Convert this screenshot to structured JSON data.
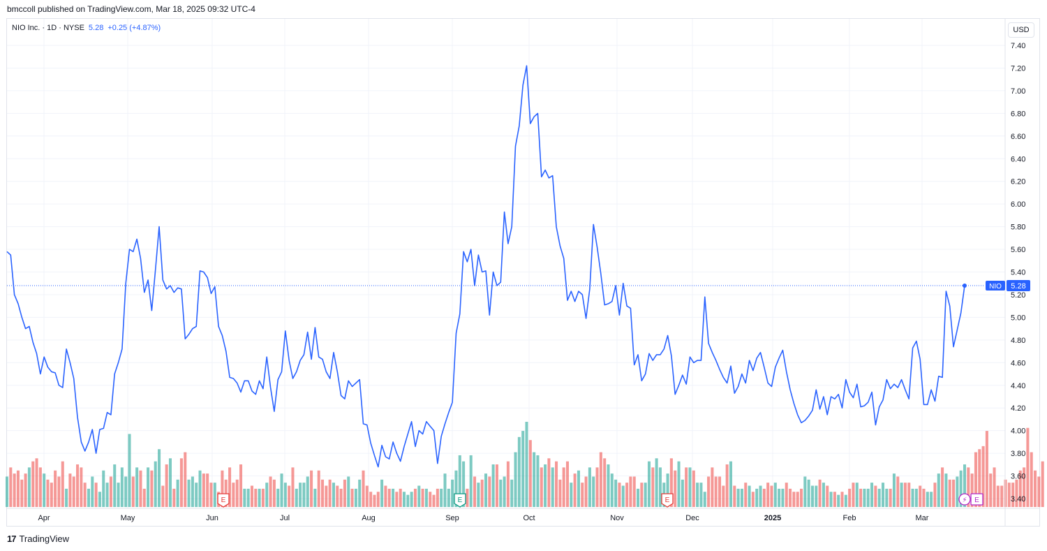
{
  "header": {
    "credit": "bmccoll published on TradingView.com, Mar 18, 2025 09:32 UTC-4"
  },
  "legend": {
    "symbol": "NIO Inc. · 1D · NYSE",
    "price": "5.28",
    "change": "+0.25 (+4.87%)"
  },
  "currency": "USD",
  "footer": {
    "brand": "TradingView"
  },
  "colors": {
    "line": "#2962ff",
    "vol_up": "#26a69a",
    "vol_down": "#ef5350",
    "grid": "#f0f3fa",
    "earn_red": "#e53935",
    "earn_green": "#089981",
    "div": "#b026c6"
  },
  "chart_data": {
    "type": "line",
    "title": "",
    "ylabel": "",
    "ylim": [
      3.3,
      7.55
    ],
    "y_ticks": [
      "7.40",
      "7.20",
      "7.00",
      "6.80",
      "6.60",
      "6.40",
      "6.20",
      "6.00",
      "5.80",
      "5.60",
      "5.40",
      "5.20",
      "5.00",
      "4.80",
      "4.60",
      "4.40",
      "4.20",
      "4.00",
      "3.80",
      "3.60",
      "3.40"
    ],
    "x_labels": [
      "Apr",
      "May",
      "Jun",
      "Jul",
      "Aug",
      "Sep",
      "Oct",
      "Nov",
      "Dec",
      "2025",
      "Feb",
      "Mar"
    ],
    "price_label": {
      "symbol": "NIO",
      "value": "5.28",
      "y": 5.28
    },
    "series": [
      {
        "name": "NIO",
        "values": [
          5.58,
          5.55,
          5.2,
          5.12,
          5.0,
          4.9,
          4.92,
          4.78,
          4.68,
          4.5,
          4.65,
          4.56,
          4.52,
          4.51,
          4.4,
          4.38,
          4.72,
          4.6,
          4.46,
          4.12,
          3.9,
          3.82,
          3.9,
          4.01,
          3.8,
          4.01,
          4.02,
          4.16,
          4.14,
          4.5,
          4.6,
          4.72,
          5.3,
          5.6,
          5.58,
          5.69,
          5.52,
          5.22,
          5.33,
          5.06,
          5.42,
          5.8,
          5.33,
          5.25,
          5.28,
          5.22,
          5.26,
          5.25,
          4.81,
          4.85,
          4.9,
          4.92,
          5.41,
          5.4,
          5.35,
          5.21,
          5.27,
          4.92,
          4.84,
          4.7,
          4.47,
          4.46,
          4.42,
          4.34,
          4.44,
          4.44,
          4.35,
          4.32,
          4.44,
          4.37,
          4.65,
          4.38,
          4.17,
          4.45,
          4.52,
          4.88,
          4.62,
          4.46,
          4.52,
          4.62,
          4.67,
          4.87,
          4.63,
          4.91,
          4.65,
          4.63,
          4.52,
          4.46,
          4.69,
          4.52,
          4.31,
          4.28,
          4.44,
          4.39,
          4.42,
          4.45,
          4.06,
          4.05,
          3.89,
          3.78,
          3.68,
          3.87,
          3.77,
          3.75,
          3.9,
          3.8,
          3.73,
          3.86,
          3.97,
          4.08,
          3.86,
          4.0,
          3.97,
          4.08,
          4.04,
          4.0,
          3.71,
          3.95,
          4.06,
          4.16,
          4.25,
          4.86,
          5.03,
          5.58,
          5.49,
          5.6,
          5.28,
          5.55,
          5.4,
          5.41,
          5.02,
          5.4,
          5.28,
          5.31,
          5.93,
          5.65,
          5.8,
          6.51,
          6.69,
          7.05,
          7.22,
          6.71,
          6.77,
          6.8,
          6.24,
          6.3,
          6.23,
          6.25,
          5.8,
          5.63,
          5.52,
          5.15,
          5.23,
          5.14,
          5.23,
          5.2,
          4.99,
          5.25,
          5.82,
          5.62,
          5.38,
          5.11,
          5.12,
          5.14,
          5.28,
          5.02,
          5.3,
          5.1,
          5.08,
          4.58,
          4.67,
          4.44,
          4.5,
          4.68,
          4.62,
          4.67,
          4.67,
          4.72,
          4.84,
          4.66,
          4.32,
          4.4,
          4.49,
          4.41,
          4.65,
          4.6,
          4.62,
          4.62,
          5.18,
          4.77,
          4.69,
          4.62,
          4.54,
          4.47,
          4.42,
          4.57,
          4.33,
          4.39,
          4.5,
          4.42,
          4.62,
          4.53,
          4.64,
          4.69,
          4.56,
          4.42,
          4.39,
          4.56,
          4.64,
          4.71,
          4.52,
          4.36,
          4.24,
          4.14,
          4.07,
          4.09,
          4.13,
          4.18,
          4.36,
          4.19,
          4.3,
          4.14,
          4.3,
          4.28,
          4.32,
          4.2,
          4.45,
          4.34,
          4.29,
          4.41,
          4.21,
          4.22,
          4.25,
          4.34,
          4.05,
          4.21,
          4.27,
          4.45,
          4.37,
          4.41,
          4.38,
          4.45,
          4.36,
          4.28,
          4.73,
          4.79,
          4.63,
          4.23,
          4.23,
          4.36,
          4.26,
          4.48,
          4.47,
          5.23,
          5.1,
          4.74,
          4.89,
          5.04,
          5.28
        ]
      },
      {
        "name": "Volume",
        "values": [
          1.0,
          1.3,
          1.1,
          1.2,
          0.9,
          1.1,
          1.3,
          1.5,
          1.6,
          1.3,
          1.1,
          0.9,
          0.8,
          1.2,
          1.0,
          1.5,
          0.6,
          1.1,
          1.0,
          1.4,
          1.3,
          0.8,
          0.6,
          1.0,
          0.8,
          0.5,
          1.2,
          0.8,
          1.0,
          1.4,
          0.8,
          1.3,
          1.0,
          2.4,
          1.0,
          1.3,
          1.2,
          0.6,
          1.3,
          1.2,
          1.5,
          1.9,
          0.7,
          1.4,
          1.6,
          0.6,
          0.9,
          1.6,
          1.8,
          0.9,
          1.0,
          0.8,
          1.2,
          1.1,
          1.1,
          0.8,
          0.8,
          0.5,
          1.2,
          0.9,
          1.3,
          0.8,
          0.9,
          1.4,
          0.6,
          0.6,
          0.7,
          0.6,
          0.6,
          0.6,
          0.8,
          1.0,
          0.9,
          0.6,
          1.1,
          0.8,
          0.7,
          1.3,
          0.6,
          0.8,
          0.8,
          1.0,
          1.2,
          0.6,
          1.2,
          0.9,
          0.7,
          0.9,
          0.8,
          0.7,
          0.6,
          0.9,
          1.0,
          0.6,
          0.6,
          0.9,
          1.2,
          0.7,
          0.5,
          0.4,
          0.5,
          0.9,
          0.7,
          0.6,
          0.6,
          0.5,
          0.6,
          0.5,
          0.4,
          0.5,
          0.6,
          0.7,
          0.6,
          0.6,
          0.5,
          0.4,
          0.6,
          0.6,
          1.1,
          0.6,
          0.9,
          1.2,
          1.7,
          1.5,
          0.6,
          1.7,
          1.0,
          0.8,
          0.9,
          1.1,
          1.0,
          1.4,
          1.4,
          0.9,
          1.0,
          1.5,
          0.9,
          1.8,
          2.3,
          2.5,
          2.8,
          2.2,
          1.8,
          1.7,
          1.3,
          1.4,
          1.6,
          1.3,
          1.5,
          0.9,
          1.3,
          1.5,
          0.8,
          1.1,
          1.2,
          0.8,
          1.0,
          1.3,
          1.0,
          1.3,
          1.8,
          1.6,
          1.4,
          1.1,
          0.9,
          0.8,
          0.7,
          0.8,
          1.0,
          1.0,
          0.6,
          0.8,
          0.8,
          1.5,
          1.3,
          1.6,
          1.3,
          0.8,
          1.1,
          1.6,
          1.2,
          1.5,
          0.9,
          1.3,
          1.3,
          1.2,
          0.8,
          0.8,
          0.5,
          1.0,
          1.3,
          1.0,
          1.0,
          0.7,
          1.4,
          1.5,
          0.7,
          0.6,
          0.6,
          0.8,
          0.7,
          0.5,
          0.6,
          0.7,
          0.6,
          0.8,
          0.7,
          0.8,
          0.6,
          0.6,
          0.8,
          0.6,
          0.5,
          0.5,
          0.6,
          1.0,
          0.9,
          0.7,
          0.7,
          0.9,
          0.8,
          0.7,
          0.5,
          0.5,
          0.4,
          0.5,
          0.4,
          0.6,
          0.8,
          0.8,
          0.6,
          0.6,
          0.6,
          0.8,
          0.7,
          0.6,
          0.8,
          0.6,
          0.6,
          1.1,
          1.0,
          0.8,
          0.8,
          0.8,
          0.6,
          0.6,
          0.7,
          0.6,
          0.5,
          0.5,
          0.8,
          1.1,
          1.3,
          1.1,
          0.9,
          0.9,
          1.0,
          1.2,
          1.4,
          1.3,
          1.1,
          1.8,
          1.9,
          2.0,
          2.5,
          1.1,
          1.3,
          0.7,
          0.7,
          0.9,
          0.8,
          0.8,
          0.9,
          1.2,
          1.3,
          2.6,
          1.8,
          1.2,
          1.0,
          1.5
        ]
      }
    ]
  }
}
